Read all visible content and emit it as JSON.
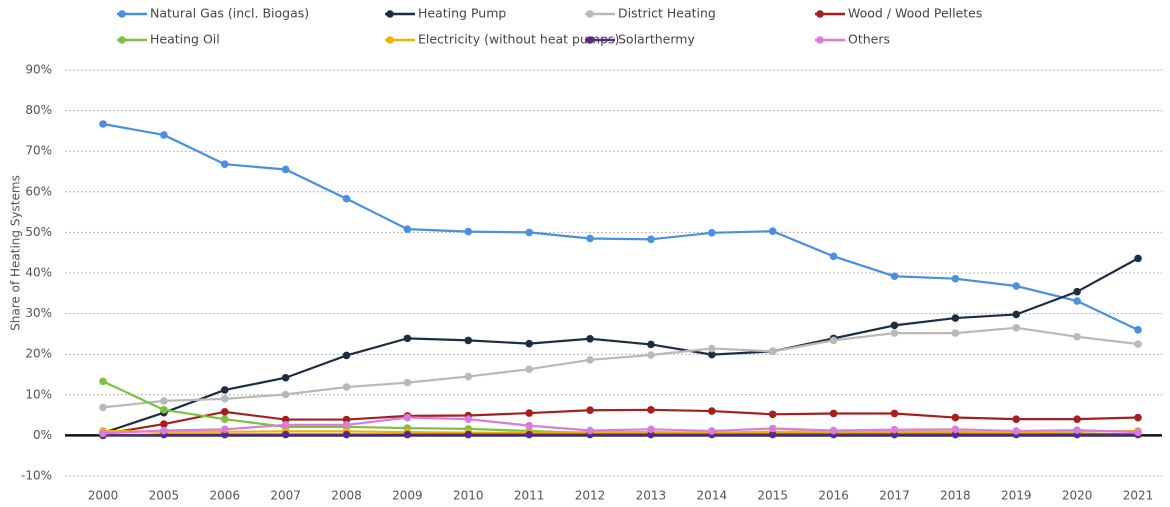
{
  "chart_data": {
    "type": "line",
    "y_label": "Share of Heating Systems",
    "categories": [
      "2000",
      "2005",
      "2006",
      "2007",
      "2008",
      "2009",
      "2010",
      "2011",
      "2012",
      "2013",
      "2014",
      "2015",
      "2016",
      "2017",
      "2018",
      "2019",
      "2020",
      "2021"
    ],
    "ylim": [
      -10,
      90
    ],
    "yticks": [
      {
        "value": -10,
        "label": "-10%"
      },
      {
        "value": 0,
        "label": "0%"
      },
      {
        "value": 10,
        "label": "10%"
      },
      {
        "value": 20,
        "label": "20%"
      },
      {
        "value": 30,
        "label": "30%"
      },
      {
        "value": 40,
        "label": "40%"
      },
      {
        "value": 50,
        "label": "50%"
      },
      {
        "value": 60,
        "label": "60%"
      },
      {
        "value": 70,
        "label": "70%"
      },
      {
        "value": 80,
        "label": "80%"
      },
      {
        "value": 90,
        "label": "90%"
      }
    ],
    "grid": true,
    "series": [
      {
        "name": "Natural Gas (incl. Biogas)",
        "color": "#4a8fe0",
        "values": [
          76.7,
          74.0,
          66.8,
          65.5,
          58.3,
          50.8,
          50.2,
          50.0,
          48.5,
          48.3,
          49.9,
          50.3,
          44.1,
          39.2,
          38.6,
          36.8,
          33.1,
          26.0
        ]
      },
      {
        "name": "Heating Pump",
        "color": "#1d2e44",
        "values": [
          0.6,
          5.6,
          11.2,
          14.2,
          19.7,
          23.9,
          23.4,
          22.6,
          23.8,
          22.4,
          19.9,
          20.7,
          23.9,
          27.1,
          28.9,
          29.8,
          35.4,
          43.6
        ]
      },
      {
        "name": "District Heating",
        "color": "#b9b9b9",
        "values": [
          6.9,
          8.5,
          9.0,
          10.1,
          11.9,
          13.0,
          14.5,
          16.3,
          18.6,
          19.8,
          21.4,
          20.7,
          23.4,
          25.2,
          25.2,
          26.5,
          24.3,
          22.5
        ]
      },
      {
        "name": "Wood / Wood Pelletes",
        "color": "#a61e1e",
        "values": [
          0.3,
          2.8,
          5.8,
          3.9,
          3.9,
          4.8,
          4.9,
          5.5,
          6.2,
          6.3,
          6.0,
          5.2,
          5.4,
          5.4,
          4.4,
          4.0,
          4.0,
          4.4
        ]
      },
      {
        "name": "Heating Oil",
        "color": "#7cc142",
        "values": [
          13.3,
          6.3,
          4.0,
          2.1,
          2.1,
          1.8,
          1.6,
          1.1,
          0.6,
          0.6,
          0.4,
          0.5,
          0.6,
          0.5,
          0.5,
          0.4,
          0.4,
          0.3
        ]
      },
      {
        "name": "Electricity (without heat pumps)",
        "color": "#f2b300",
        "values": [
          1.1,
          0.9,
          0.9,
          1.0,
          1.0,
          0.8,
          0.7,
          0.6,
          0.8,
          0.8,
          0.7,
          0.9,
          0.9,
          0.9,
          0.9,
          0.8,
          1.0,
          1.1
        ]
      },
      {
        "name": "Solarthermy",
        "color": "#5b2a86",
        "values": [
          0.0,
          0.2,
          0.2,
          0.2,
          0.2,
          0.2,
          0.2,
          0.2,
          0.2,
          0.2,
          0.2,
          0.2,
          0.2,
          0.2,
          0.2,
          0.2,
          0.2,
          0.2
        ]
      },
      {
        "name": "Others",
        "color": "#d77de0",
        "values": [
          0.5,
          1.2,
          1.5,
          2.6,
          2.6,
          4.4,
          4.0,
          2.4,
          1.2,
          1.5,
          1.1,
          1.7,
          1.2,
          1.4,
          1.5,
          1.1,
          1.3,
          0.8
        ]
      }
    ]
  }
}
